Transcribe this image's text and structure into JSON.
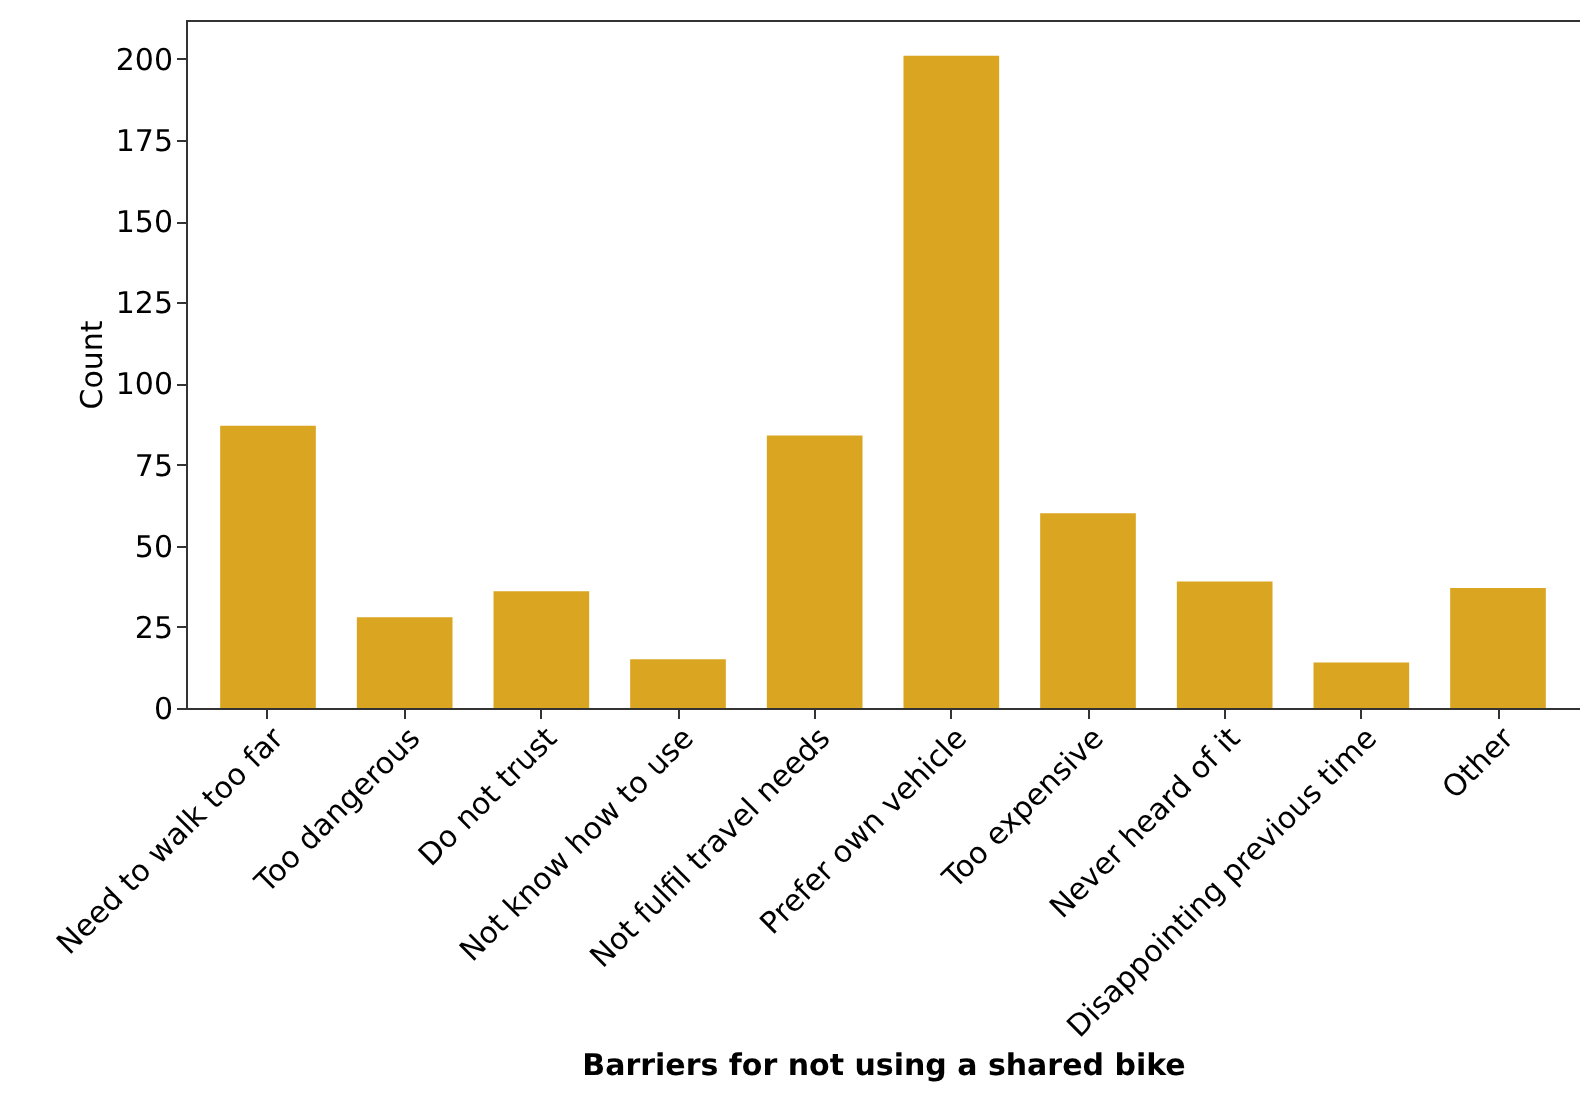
{
  "chart_data": {
    "type": "bar",
    "xlabel": "Barriers for not using a shared bike",
    "ylabel": "Count",
    "categories": [
      "Need to walk too far",
      "Too dangerous",
      "Do not trust",
      "Not know how to use",
      "Not fulfil travel needs",
      "Prefer own vehicle",
      "Too expensive",
      "Never heard of it",
      "Disappointing previous time",
      "Other"
    ],
    "values": [
      87,
      28,
      36,
      15,
      84,
      201,
      60,
      39,
      14,
      37
    ],
    "color": "#daa520",
    "ylim": [
      0,
      212
    ],
    "yticks": [
      0,
      25,
      50,
      75,
      100,
      125,
      150,
      175,
      200
    ],
    "grid": false
  }
}
